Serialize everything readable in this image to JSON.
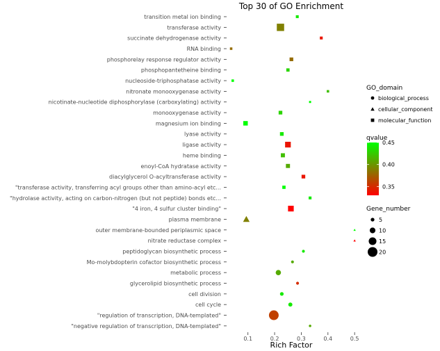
{
  "chart_data": {
    "type": "scatter",
    "title": "Top 30 of GO Enrichment",
    "xlabel": "Rich Factor",
    "ylabel": "",
    "xlim": [
      0.02,
      0.51
    ],
    "xticks": [
      0.1,
      0.2,
      0.3,
      0.4,
      0.5
    ],
    "xtick_labels": [
      "0.1",
      "0.2",
      "0.3",
      "0.4",
      "0.5"
    ],
    "grid": false,
    "points": [
      {
        "term": "transition metal ion binding",
        "x": 0.285,
        "domain": "molecular_function",
        "qvalue": 0.44,
        "gene_number": 3
      },
      {
        "term": "transferase activity",
        "x": 0.222,
        "domain": "molecular_function",
        "qvalue": 0.39,
        "gene_number": 14
      },
      {
        "term": "succinate dehydrogenase activity",
        "x": 0.375,
        "domain": "molecular_function",
        "qvalue": 0.34,
        "gene_number": 3
      },
      {
        "term": "RNA binding",
        "x": 0.037,
        "domain": "molecular_function",
        "qvalue": 0.38,
        "gene_number": 2
      },
      {
        "term": "phosphorelay response regulator activity",
        "x": 0.263,
        "domain": "molecular_function",
        "qvalue": 0.38,
        "gene_number": 5
      },
      {
        "term": "phosphopantetheine binding",
        "x": 0.25,
        "domain": "molecular_function",
        "qvalue": 0.43,
        "gene_number": 4
      },
      {
        "term": "nucleoside-triphosphatase activity",
        "x": 0.043,
        "domain": "molecular_function",
        "qvalue": 0.45,
        "gene_number": 2
      },
      {
        "term": "nitronate monooxygenase activity",
        "x": 0.4,
        "domain": "molecular_function",
        "qvalue": 0.42,
        "gene_number": 2
      },
      {
        "term": "nicotinate-nucleotide diphosphorylase (carboxylating) activity",
        "x": 0.333,
        "domain": "molecular_function",
        "qvalue": 0.45,
        "gene_number": 1
      },
      {
        "term": "monooxygenase activity",
        "x": 0.222,
        "domain": "molecular_function",
        "qvalue": 0.43,
        "gene_number": 5
      },
      {
        "term": "magnesium ion binding",
        "x": 0.091,
        "domain": "molecular_function",
        "qvalue": 0.45,
        "gene_number": 7
      },
      {
        "term": "lyase activity",
        "x": 0.227,
        "domain": "molecular_function",
        "qvalue": 0.44,
        "gene_number": 5
      },
      {
        "term": "ligase activity",
        "x": 0.25,
        "domain": "molecular_function",
        "qvalue": 0.34,
        "gene_number": 10
      },
      {
        "term": "heme binding",
        "x": 0.231,
        "domain": "molecular_function",
        "qvalue": 0.42,
        "gene_number": 6
      },
      {
        "term": "enoyl-CoA hydratase activity",
        "x": 0.25,
        "domain": "molecular_function",
        "qvalue": 0.41,
        "gene_number": 6
      },
      {
        "term": "diacylglycerol O-acyltransferase activity",
        "x": 0.308,
        "domain": "molecular_function",
        "qvalue": 0.34,
        "gene_number": 5
      },
      {
        "term": "\"transferase activity, transferring acyl groups other than amino-acyl  etc...",
        "x": 0.235,
        "domain": "molecular_function",
        "qvalue": 0.45,
        "gene_number": 4
      },
      {
        "term": "\"hydrolase activity, acting on carbon-nitrogen (but not peptide) bonds etc...",
        "x": 0.333,
        "domain": "molecular_function",
        "qvalue": 0.44,
        "gene_number": 3
      },
      {
        "term": "\"4 iron, 4 sulfur cluster binding\"",
        "x": 0.261,
        "domain": "molecular_function",
        "qvalue": 0.33,
        "gene_number": 10
      },
      {
        "term": "plasma membrane",
        "x": 0.094,
        "domain": "cellular_component",
        "qvalue": 0.39,
        "gene_number": 10
      },
      {
        "term": "outer membrane-bounded periplasmic space",
        "x": 0.5,
        "domain": "cellular_component",
        "qvalue": 0.45,
        "gene_number": 1
      },
      {
        "term": "nitrate reductase complex",
        "x": 0.5,
        "domain": "cellular_component",
        "qvalue": 0.33,
        "gene_number": 1
      },
      {
        "term": "peptidoglycan biosynthetic process",
        "x": 0.308,
        "domain": "biological_process",
        "qvalue": 0.44,
        "gene_number": 3
      },
      {
        "term": "Mo-molybdopterin cofactor biosynthetic process",
        "x": 0.267,
        "domain": "biological_process",
        "qvalue": 0.41,
        "gene_number": 3
      },
      {
        "term": "metabolic process",
        "x": 0.214,
        "domain": "biological_process",
        "qvalue": 0.41,
        "gene_number": 9
      },
      {
        "term": "glycerolipid biosynthetic process",
        "x": 0.286,
        "domain": "biological_process",
        "qvalue": 0.35,
        "gene_number": 3
      },
      {
        "term": "cell division",
        "x": 0.227,
        "domain": "biological_process",
        "qvalue": 0.44,
        "gene_number": 5
      },
      {
        "term": "cell cycle",
        "x": 0.259,
        "domain": "biological_process",
        "qvalue": 0.44,
        "gene_number": 6
      },
      {
        "term": "\"regulation of transcription, DNA-templated\"",
        "x": 0.197,
        "domain": "biological_process",
        "qvalue": 0.36,
        "gene_number": 20
      },
      {
        "term": "\"negative regulation of transcription, DNA-templated\"",
        "x": 0.333,
        "domain": "biological_process",
        "qvalue": 0.41,
        "gene_number": 2
      }
    ],
    "legends": {
      "shape": {
        "title": "GO_domain",
        "entries": [
          {
            "label": "biological_process",
            "shape": "circle"
          },
          {
            "label": "cellular_component",
            "shape": "triangle"
          },
          {
            "label": "molecular_function",
            "shape": "square"
          }
        ]
      },
      "color": {
        "title": "qvalue",
        "range": [
          0.33,
          0.45
        ],
        "ticks": [
          0.45,
          0.4,
          0.35
        ],
        "tick_labels": [
          "0.45",
          "0.40",
          "0.35"
        ],
        "low_color": "#ff0000",
        "high_color": "#00ff00"
      },
      "size": {
        "title": "Gene_number",
        "values": [
          5,
          10,
          15,
          20
        ],
        "labels": [
          "5",
          "10",
          "15",
          "20"
        ]
      }
    },
    "legend_placement": "right"
  }
}
